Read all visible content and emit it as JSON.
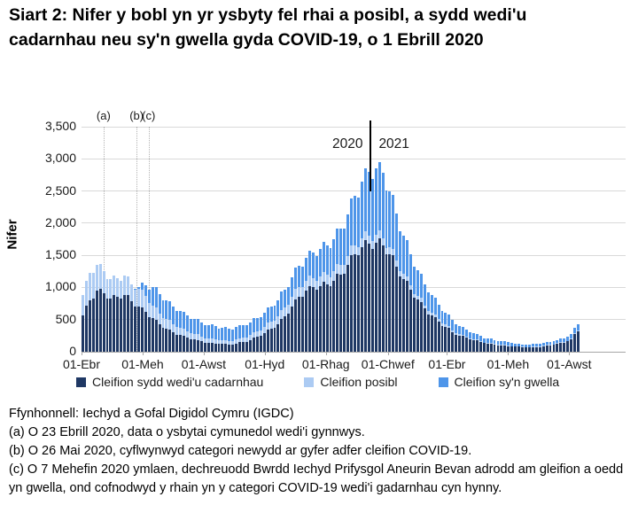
{
  "title": "Siart 2: Nifer y bobl yn yr ysbyty fel rhai a posibl, a sydd wedi'u cadarnhau neu sy'n gwella gyda COVID-19, o 1 Ebrill 2020",
  "chart": {
    "ylabel": "Nifer",
    "year_left": "2020",
    "year_right": "2021",
    "legend": [
      {
        "label": "Cleifion sydd wedi'u cadarnhau",
        "color": "#1F3864"
      },
      {
        "label": "Cleifion posibl",
        "color": "#ACCBF3"
      },
      {
        "label": "Cleifion sy'n gwella",
        "color": "#4E95E9"
      }
    ]
  },
  "chart_data": {
    "type": "bar",
    "stacked": true,
    "title": "",
    "xlabel": "",
    "ylabel": "Nifer",
    "ylim": [
      0,
      3500
    ],
    "ytick_labels": [
      "0",
      "500",
      "1,000",
      "1,500",
      "2,000",
      "2,500",
      "3,000",
      "3,500"
    ],
    "xticks": [
      {
        "label": "01-Ebr",
        "day": 0
      },
      {
        "label": "01-Meh",
        "day": 61
      },
      {
        "label": "01-Awst",
        "day": 122
      },
      {
        "label": "01-Hyd",
        "day": 183
      },
      {
        "label": "01-Rhag",
        "day": 244
      },
      {
        "label": "01-Chwef",
        "day": 306
      },
      {
        "label": "01-Ebr",
        "day": 365
      },
      {
        "label": "01-Meh",
        "day": 426
      },
      {
        "label": "01-Awst",
        "day": 487
      }
    ],
    "x_start": "2020-04-01",
    "x_step_days": 7,
    "annotations": [
      {
        "label": "(a)",
        "day": 22
      },
      {
        "label": "(b)",
        "day": 55
      },
      {
        "label": "(c)",
        "day": 67
      }
    ],
    "series": [
      {
        "name": "Cleifion sydd wedi'u cadarnhau",
        "color": "#1F3864",
        "values": [
          560,
          800,
          950,
          910,
          830,
          860,
          880,
          790,
          700,
          620,
          520,
          430,
          360,
          300,
          260,
          220,
          190,
          160,
          140,
          130,
          120,
          115,
          130,
          150,
          185,
          235,
          290,
          355,
          425,
          550,
          700,
          850,
          950,
          1000,
          1020,
          1050,
          1100,
          1200,
          1350,
          1520,
          1630,
          1680,
          1700,
          1660,
          1520,
          1330,
          1130,
          960,
          810,
          670,
          560,
          465,
          390,
          310,
          255,
          215,
          180,
          152,
          130,
          114,
          100,
          90,
          80,
          72,
          70,
          74,
          85,
          102,
          122,
          145,
          195,
          320
        ]
      },
      {
        "name": "Cleifion posibl",
        "color": "#ACCBF3",
        "values": [
          320,
          430,
          400,
          350,
          300,
          280,
          300,
          260,
          280,
          250,
          200,
          170,
          150,
          130,
          110,
          100,
          90,
          80,
          70,
          65,
          60,
          55,
          60,
          65,
          75,
          85,
          100,
          115,
          125,
          135,
          150,
          155,
          155,
          150,
          150,
          150,
          150,
          150,
          145,
          140,
          130,
          125,
          120,
          110,
          100,
          90,
          80,
          70,
          60,
          50,
          45,
          40,
          32,
          26,
          22,
          18,
          15,
          13,
          11,
          10,
          9,
          8,
          7,
          6,
          6,
          6,
          7,
          8,
          9,
          10,
          12,
          16
        ]
      },
      {
        "name": "Cleifion sy'n gwella",
        "color": "#4E95E9",
        "values": [
          0,
          0,
          0,
          0,
          0,
          0,
          0,
          0,
          30,
          160,
          290,
          300,
          290,
          280,
          260,
          245,
          230,
          220,
          210,
          200,
          195,
          190,
          190,
          195,
          200,
          210,
          220,
          235,
          255,
          285,
          310,
          330,
          355,
          395,
          430,
          455,
          500,
          560,
          635,
          760,
          880,
          995,
          1030,
          1010,
          880,
          730,
          590,
          480,
          395,
          330,
          275,
          225,
          185,
          155,
          128,
          107,
          92,
          78,
          68,
          60,
          54,
          48,
          44,
          40,
          38,
          40,
          44,
          48,
          52,
          57,
          68,
          95
        ]
      }
    ]
  },
  "footnotes": [
    "Ffynhonnell: Iechyd a Gofal Digidol Cymru (IGDC)",
    "(a) O 23 Ebrill 2020, data o ysbytai cymunedol wedi'i gynnwys.",
    "(b) O 26 Mai 2020, cyflwynwyd categori newydd ar gyfer adfer cleifion COVID-19.",
    "(c) O 7 Mehefin 2020 ymlaen, dechreuodd Bwrdd Iechyd Prifysgol Aneurin Bevan adrodd am gleifion a oedd yn gwella, ond cofnodwyd y rhain yn y categori COVID-19 wedi'i gadarnhau cyn hynny."
  ]
}
